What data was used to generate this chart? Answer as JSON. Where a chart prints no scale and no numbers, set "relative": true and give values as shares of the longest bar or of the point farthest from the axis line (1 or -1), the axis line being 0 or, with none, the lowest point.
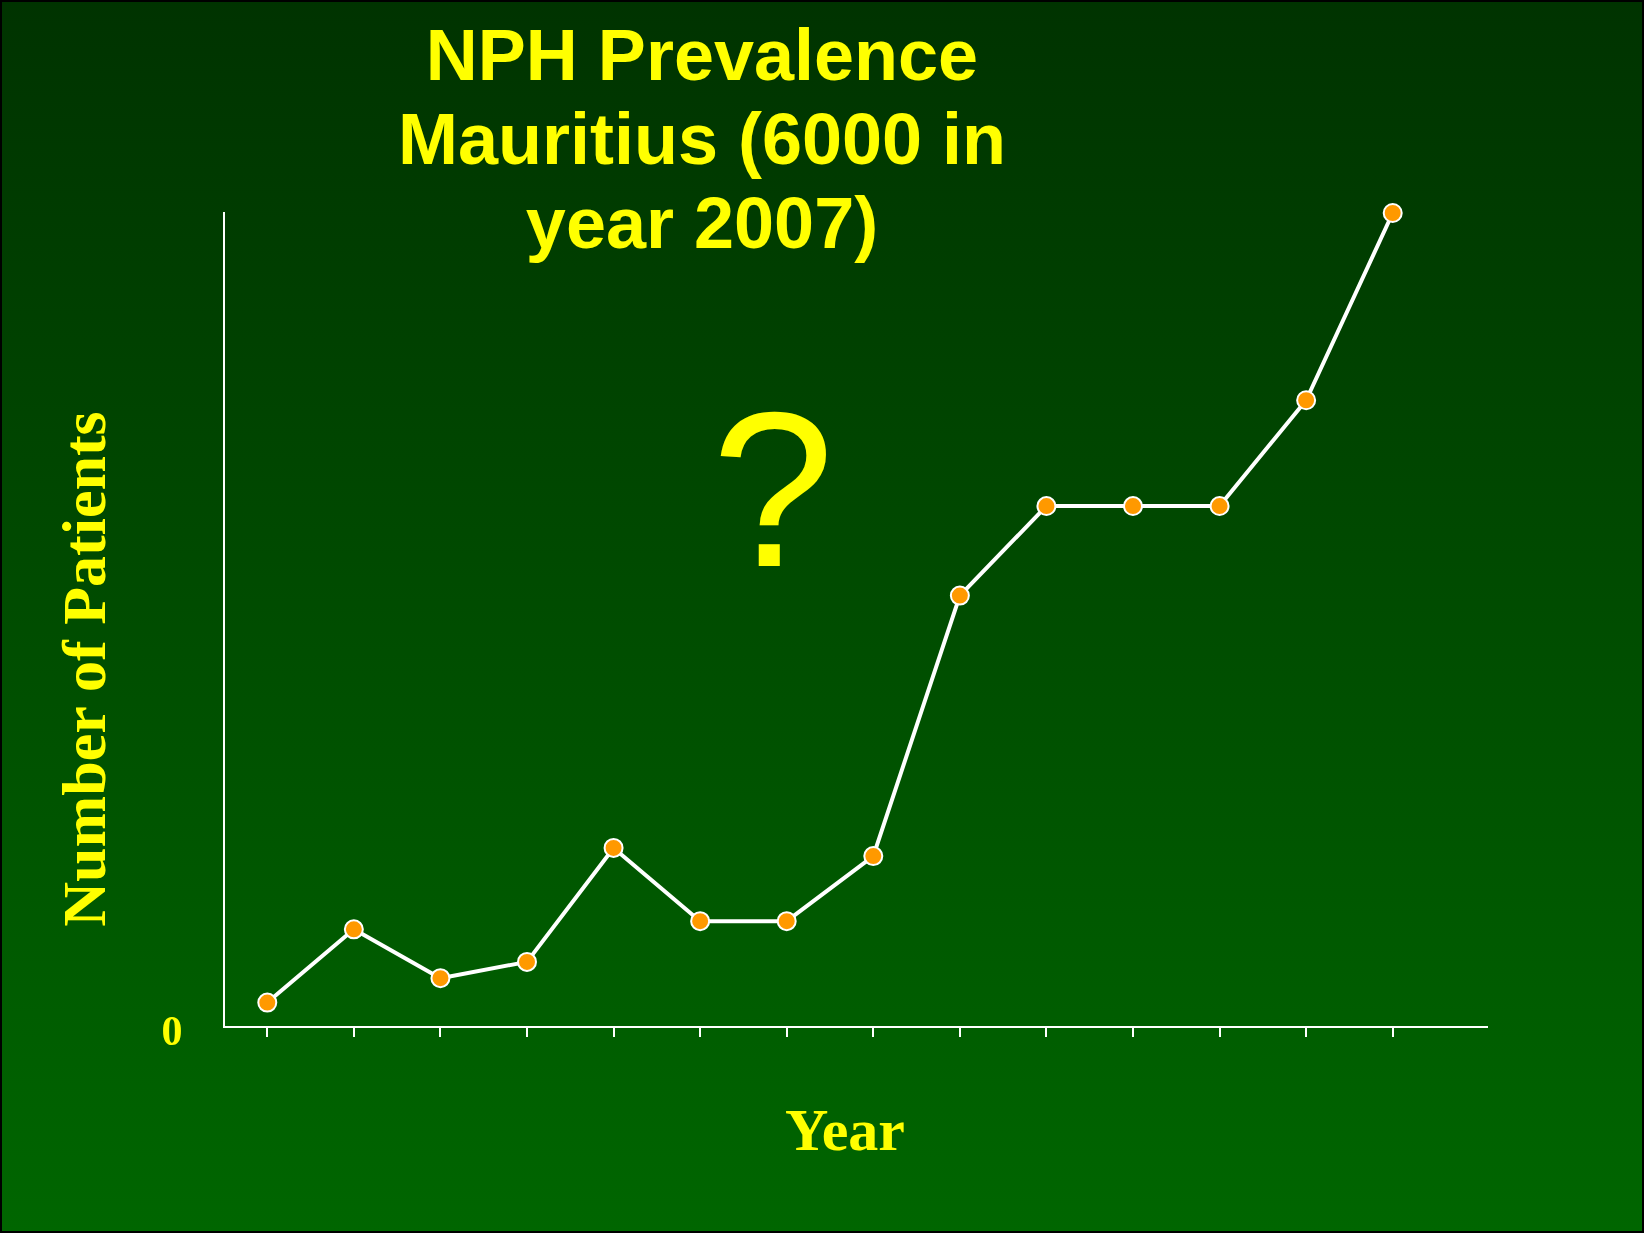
{
  "chart_data": {
    "type": "line",
    "title": "NPH Prevalence Mauritius (6000 in year 2007)",
    "xlabel": "Year",
    "ylabel": "Number of Patients",
    "annotations": [
      "?",
      "0"
    ],
    "categories": [
      null,
      null,
      null,
      null,
      null,
      null,
      null,
      null,
      null,
      null,
      null,
      null,
      null,
      null
    ],
    "relative": true,
    "series": [
      {
        "color": "#ffffff",
        "colors": [
          "#ff9900",
          "#ff9900",
          "#ff9900",
          "#ff9900",
          "#ff9900",
          "#ff9900",
          "#ff9900",
          "#ff9900",
          "#ff9900",
          "#ff9900",
          "#ff9900",
          "#ff9900",
          "#ff9900",
          "#ff9900"
        ],
        "values": [
          0.03,
          0.12,
          0.06,
          0.08,
          0.22,
          0.13,
          0.13,
          0.21,
          0.53,
          0.64,
          0.64,
          0.64,
          0.77,
          1
        ]
      }
    ],
    "marker": "circle",
    "line_style": "solid"
  }
}
